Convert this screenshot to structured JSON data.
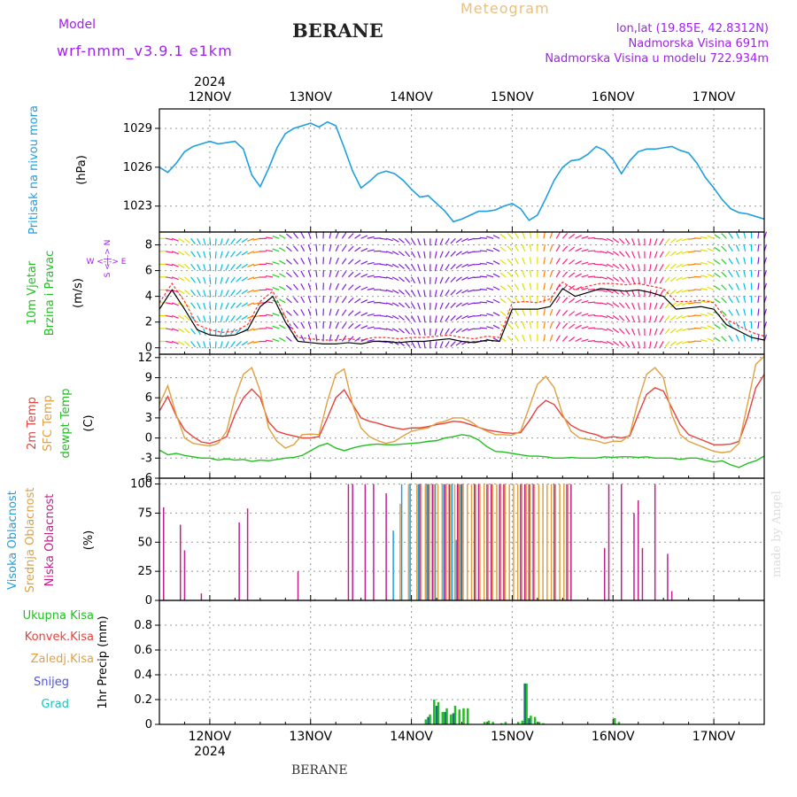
{
  "header": {
    "model_label": "Model",
    "model_name": "wrf-nmm_v3.9.1 e1km",
    "station": "BERANE",
    "meteogram": "Meteogram",
    "lonlat": "lon,lat (19.85E, 42.8312N)",
    "elevation": "Nadmorska Visina 691m",
    "model_elevation": "Nadmorska Visina u modelu 722.934m"
  },
  "footer": {
    "station": "BERANE",
    "made_by": "made by Angel"
  },
  "colors": {
    "pressure": "#1e9fe0",
    "temp2m": "#e8413c",
    "sfc": "#e0a040",
    "dewpt": "#20c020",
    "high_cloud": "#1e9fe0",
    "mid_cloud": "#e0a040",
    "low_cloud": "#c0208c",
    "total_precip": "#20c020",
    "conv_precip": "#e8413c",
    "snow": "#5050e0",
    "graupel": "#20c0c0",
    "accent_purple": "#a020f0"
  },
  "chart_data": [
    {
      "type": "line",
      "panel": "pressure",
      "ylabel": [
        "Pritisak na nivou mora",
        "(hPa)"
      ],
      "yticks": [
        1023,
        1026,
        1029
      ],
      "ylim": [
        1021,
        1030.5
      ],
      "xlim": [
        0,
        144
      ],
      "year": "2024",
      "day_labels": [
        "12NOV",
        "13NOV",
        "14NOV",
        "15NOV",
        "16NOV",
        "17NOV"
      ],
      "day_ticks": [
        12,
        36,
        60,
        84,
        108,
        132
      ],
      "grid": true,
      "x": [
        0,
        2,
        4,
        6,
        8,
        10,
        12,
        14,
        16,
        18,
        20,
        22,
        24,
        26,
        28,
        30,
        32,
        34,
        36,
        38,
        40,
        42,
        44,
        46,
        48,
        50,
        52,
        54,
        56,
        58,
        60,
        62,
        64,
        66,
        68,
        70,
        72,
        74,
        76,
        78,
        80,
        82,
        84,
        86,
        88,
        90,
        92,
        94,
        96,
        98,
        100,
        102,
        104,
        106,
        108,
        110,
        112,
        114,
        116,
        118,
        120,
        122,
        124,
        126,
        128,
        130,
        132,
        134,
        136,
        138,
        140,
        142,
        144
      ],
      "series": [
        {
          "values": [
            1026.0,
            1025.6,
            1026.3,
            1027.2,
            1027.6,
            1027.8,
            1028.0,
            1027.8,
            1027.9,
            1028.0,
            1027.4,
            1025.4,
            1024.5,
            1025.9,
            1027.5,
            1028.6,
            1029.0,
            1029.2,
            1029.4,
            1029.1,
            1029.5,
            1029.2,
            1027.5,
            1025.7,
            1024.4,
            1024.9,
            1025.5,
            1025.7,
            1025.5,
            1025.0,
            1024.3,
            1023.7,
            1023.8,
            1023.2,
            1022.6,
            1021.8,
            1022.0,
            1022.3,
            1022.6,
            1022.6,
            1022.7,
            1023.0,
            1023.2,
            1022.8,
            1021.9,
            1022.3,
            1023.6,
            1025.0,
            1026.0,
            1026.5,
            1026.6,
            1027.0,
            1027.6,
            1027.3,
            1026.6,
            1025.5,
            1026.5,
            1027.2,
            1027.4,
            1027.4,
            1027.5,
            1027.6,
            1027.3,
            1027.1,
            1026.3,
            1025.2,
            1024.4,
            1023.5,
            1022.8,
            1022.5,
            1022.4,
            1022.2,
            1022.0
          ]
        }
      ]
    },
    {
      "type": "line",
      "panel": "wind",
      "ylabel": [
        "10m Vjetar",
        "Brzina i Pravac",
        "(m/s)"
      ],
      "compass": "W <-|-> E",
      "compass_v": "S <-|-> N",
      "yticks": [
        0,
        2,
        4,
        6,
        8
      ],
      "ylim": [
        -0.5,
        9
      ],
      "xlim": [
        0,
        144
      ],
      "x": [
        0,
        3,
        6,
        9,
        12,
        15,
        18,
        21,
        24,
        27,
        30,
        33,
        36,
        39,
        42,
        45,
        48,
        51,
        54,
        57,
        60,
        63,
        66,
        69,
        72,
        75,
        78,
        81,
        84,
        87,
        90,
        93,
        96,
        99,
        102,
        105,
        108,
        111,
        114,
        117,
        120,
        123,
        126,
        129,
        132,
        135,
        138,
        141,
        144
      ],
      "series": [
        {
          "name": "speed",
          "values": [
            3.0,
            4.5,
            3.0,
            1.4,
            1.0,
            0.9,
            1.0,
            1.4,
            3.2,
            4.0,
            2.0,
            0.5,
            0.4,
            0.3,
            0.3,
            0.4,
            0.3,
            0.5,
            0.5,
            0.4,
            0.5,
            0.5,
            0.6,
            0.7,
            0.5,
            0.4,
            0.6,
            0.5,
            3.0,
            3.0,
            3.0,
            3.2,
            4.6,
            4.0,
            4.3,
            4.6,
            4.5,
            4.4,
            4.5,
            4.3,
            4.0,
            3.0,
            3.1,
            3.2,
            3.0,
            1.8,
            1.3,
            0.8,
            0.6
          ]
        },
        {
          "name": "gust",
          "values": [
            3.5,
            5.0,
            3.6,
            1.8,
            1.4,
            1.2,
            1.3,
            1.8,
            3.6,
            4.4,
            2.4,
            0.8,
            0.7,
            0.6,
            0.6,
            0.7,
            0.6,
            0.8,
            0.8,
            0.7,
            0.8,
            0.8,
            0.9,
            1.0,
            0.8,
            0.7,
            0.9,
            0.8,
            3.5,
            3.6,
            3.5,
            3.8,
            5.1,
            4.5,
            4.8,
            5.0,
            5.0,
            4.9,
            5.0,
            4.8,
            4.6,
            3.6,
            3.6,
            3.7,
            3.5,
            2.2,
            1.7,
            1.2,
            0.9
          ]
        }
      ]
    },
    {
      "type": "line",
      "panel": "temperature",
      "ylabel": [
        "2m Temp",
        "SFC Temp",
        "dewpt Temp",
        "(C)"
      ],
      "yticks": [
        -6,
        -3,
        0,
        3,
        6,
        9,
        12
      ],
      "ylim": [
        -6,
        12.5
      ],
      "xlim": [
        0,
        144
      ],
      "x": [
        0,
        2,
        4,
        6,
        8,
        10,
        12,
        14,
        16,
        18,
        20,
        22,
        24,
        26,
        28,
        30,
        32,
        34,
        36,
        38,
        40,
        42,
        44,
        46,
        48,
        50,
        52,
        54,
        56,
        58,
        60,
        62,
        64,
        66,
        68,
        70,
        72,
        74,
        76,
        78,
        80,
        82,
        84,
        86,
        88,
        90,
        92,
        94,
        96,
        98,
        100,
        102,
        104,
        106,
        108,
        110,
        112,
        114,
        116,
        118,
        120,
        122,
        124,
        126,
        128,
        130,
        132,
        134,
        136,
        138,
        140,
        142,
        144
      ],
      "series": [
        {
          "name": "2m Temp",
          "values": [
            4.0,
            6.2,
            3.3,
            1.2,
            0.2,
            -0.6,
            -0.8,
            -0.4,
            0.2,
            3.5,
            6.0,
            7.3,
            6.0,
            2.4,
            1.0,
            0.6,
            0.3,
            0.0,
            0.0,
            0.2,
            3.0,
            6.0,
            7.2,
            5.0,
            3.0,
            2.5,
            2.2,
            1.8,
            1.5,
            1.3,
            1.5,
            1.5,
            1.7,
            2.0,
            2.2,
            2.5,
            2.4,
            2.0,
            1.6,
            1.2,
            1.0,
            0.8,
            0.7,
            0.8,
            2.5,
            4.5,
            5.6,
            5.0,
            3.2,
            1.9,
            1.2,
            0.8,
            0.5,
            0.0,
            0.2,
            0.0,
            0.3,
            3.5,
            6.5,
            7.5,
            7.0,
            4.5,
            2.0,
            0.5,
            0.0,
            -0.5,
            -1.0,
            -1.0,
            -0.9,
            -0.5,
            3.0,
            7.5,
            9.5
          ]
        },
        {
          "name": "SFC Temp",
          "values": [
            5.0,
            7.8,
            3.5,
            0.0,
            -0.8,
            -1.0,
            -1.2,
            -0.8,
            1.0,
            6.0,
            9.5,
            10.5,
            7.0,
            1.5,
            -0.5,
            -1.5,
            -1.0,
            0.5,
            0.6,
            0.5,
            5.5,
            9.5,
            10.3,
            5.0,
            1.5,
            0.2,
            -0.4,
            -0.8,
            -0.5,
            0.3,
            1.0,
            1.3,
            1.5,
            2.2,
            2.5,
            3.0,
            3.0,
            2.5,
            1.6,
            1.0,
            0.5,
            0.5,
            0.4,
            1.0,
            4.5,
            8.0,
            9.2,
            7.5,
            3.5,
            1.0,
            0.0,
            -0.2,
            -0.4,
            -0.8,
            -0.5,
            -0.5,
            0.5,
            5.5,
            9.5,
            10.5,
            9.0,
            3.5,
            0.5,
            -0.5,
            -1.0,
            -1.5,
            -2.0,
            -2.2,
            -2.0,
            -0.8,
            5.0,
            11.0,
            12.2
          ]
        },
        {
          "name": "dewpt Temp",
          "values": [
            -1.8,
            -2.5,
            -2.3,
            -2.6,
            -2.8,
            -3.0,
            -3.0,
            -3.3,
            -3.1,
            -3.3,
            -3.2,
            -3.5,
            -3.3,
            -3.4,
            -3.2,
            -3.0,
            -2.9,
            -2.6,
            -1.9,
            -1.2,
            -0.8,
            -1.5,
            -1.9,
            -1.5,
            -1.2,
            -1.0,
            -0.9,
            -1.0,
            -1.0,
            -0.9,
            -0.8,
            -0.7,
            -0.5,
            -0.4,
            0.0,
            0.2,
            0.5,
            0.3,
            -0.3,
            -1.3,
            -2.0,
            -2.1,
            -2.3,
            -2.5,
            -2.7,
            -2.7,
            -2.8,
            -3.0,
            -3.0,
            -2.9,
            -3.0,
            -3.0,
            -3.0,
            -2.8,
            -2.9,
            -2.8,
            -2.8,
            -2.9,
            -2.8,
            -3.0,
            -3.0,
            -3.0,
            -3.2,
            -3.0,
            -3.0,
            -3.3,
            -3.6,
            -3.4,
            -4.0,
            -4.4,
            -3.8,
            -3.4,
            -2.7
          ]
        }
      ]
    },
    {
      "type": "bar",
      "panel": "clouds",
      "ylabel": [
        "Visoka Oblacnost",
        "Srednja Oblacnost",
        "Niska Oblacnost",
        "(%)"
      ],
      "yticks": [
        0,
        25,
        50,
        75,
        100
      ],
      "ylim": [
        0,
        105
      ],
      "xlim": [
        0,
        144
      ],
      "series": [
        {
          "name": "Niska Oblacnost",
          "x": [
            1,
            5,
            6,
            10,
            19,
            21,
            33,
            37,
            45,
            46,
            49,
            51,
            54,
            62,
            64,
            65,
            68,
            69,
            71,
            72,
            75,
            76,
            78,
            79,
            81,
            82,
            86,
            87,
            88,
            89,
            94,
            97,
            98,
            106,
            107,
            110,
            113,
            114,
            115,
            118,
            121,
            122
          ],
          "values": [
            80,
            65,
            43,
            6,
            67,
            79,
            25,
            1,
            100,
            100,
            100,
            100,
            92,
            100,
            100,
            100,
            100,
            100,
            100,
            100,
            100,
            100,
            100,
            100,
            100,
            100,
            100,
            100,
            100,
            100,
            100,
            100,
            100,
            45,
            100,
            100,
            75,
            86,
            45,
            100,
            40,
            8
          ]
        },
        {
          "name": "Srednja Oblacnost",
          "x": [
            57,
            59,
            61,
            62,
            63,
            64,
            65,
            66,
            67,
            68,
            69,
            70,
            71,
            72,
            73,
            74,
            75,
            76,
            77,
            78,
            79,
            80,
            81,
            82,
            83,
            84,
            85,
            86,
            87,
            88,
            89,
            90,
            91,
            92,
            93,
            94,
            95,
            96,
            97
          ],
          "values": [
            83,
            100,
            100,
            100,
            100,
            100,
            100,
            100,
            100,
            100,
            100,
            100,
            100,
            100,
            100,
            100,
            100,
            100,
            100,
            100,
            100,
            100,
            100,
            100,
            100,
            100,
            100,
            100,
            100,
            100,
            100,
            100,
            100,
            100,
            100,
            100,
            100,
            100,
            100
          ]
        },
        {
          "name": "Visoka Oblacnost",
          "x": [
            56,
            58,
            60,
            62,
            64,
            66,
            68,
            70,
            71,
            72
          ],
          "values": [
            60,
            100,
            100,
            100,
            100,
            100,
            100,
            100,
            52,
            100
          ]
        }
      ]
    },
    {
      "type": "bar",
      "panel": "precip",
      "ylabel": [
        "1hr Precip (mm)"
      ],
      "legend": [
        "Ukupna Kisa",
        "Konvek.Kisa",
        "Zaledj.Kisa",
        "Snijeg",
        "Grad"
      ],
      "yticks": [
        0,
        0.2,
        0.4,
        0.6,
        0.8
      ],
      "ylim": [
        0,
        1.0
      ],
      "xlim": [
        0,
        144
      ],
      "series": [
        {
          "name": "Ukupna Kisa",
          "x": [
            63,
            64,
            65,
            66,
            67,
            68,
            69,
            70,
            71,
            72,
            73,
            77,
            78,
            79,
            81,
            82,
            85,
            86,
            87,
            88,
            89,
            90,
            91,
            108,
            109
          ],
          "values": [
            0.04,
            0.08,
            0.2,
            0.18,
            0.1,
            0.13,
            0.08,
            0.15,
            0.12,
            0.13,
            0.13,
            0.02,
            0.03,
            0.02,
            0.01,
            0.02,
            0.02,
            0.03,
            0.33,
            0.07,
            0.06,
            0.02,
            0.01,
            0.05,
            0.02
          ]
        },
        {
          "name": "Snijeg",
          "x": [
            64,
            66,
            68,
            70,
            87,
            88
          ],
          "values": [
            0.06,
            0.15,
            0.1,
            0.09,
            0.33,
            0.05
          ]
        }
      ]
    }
  ]
}
